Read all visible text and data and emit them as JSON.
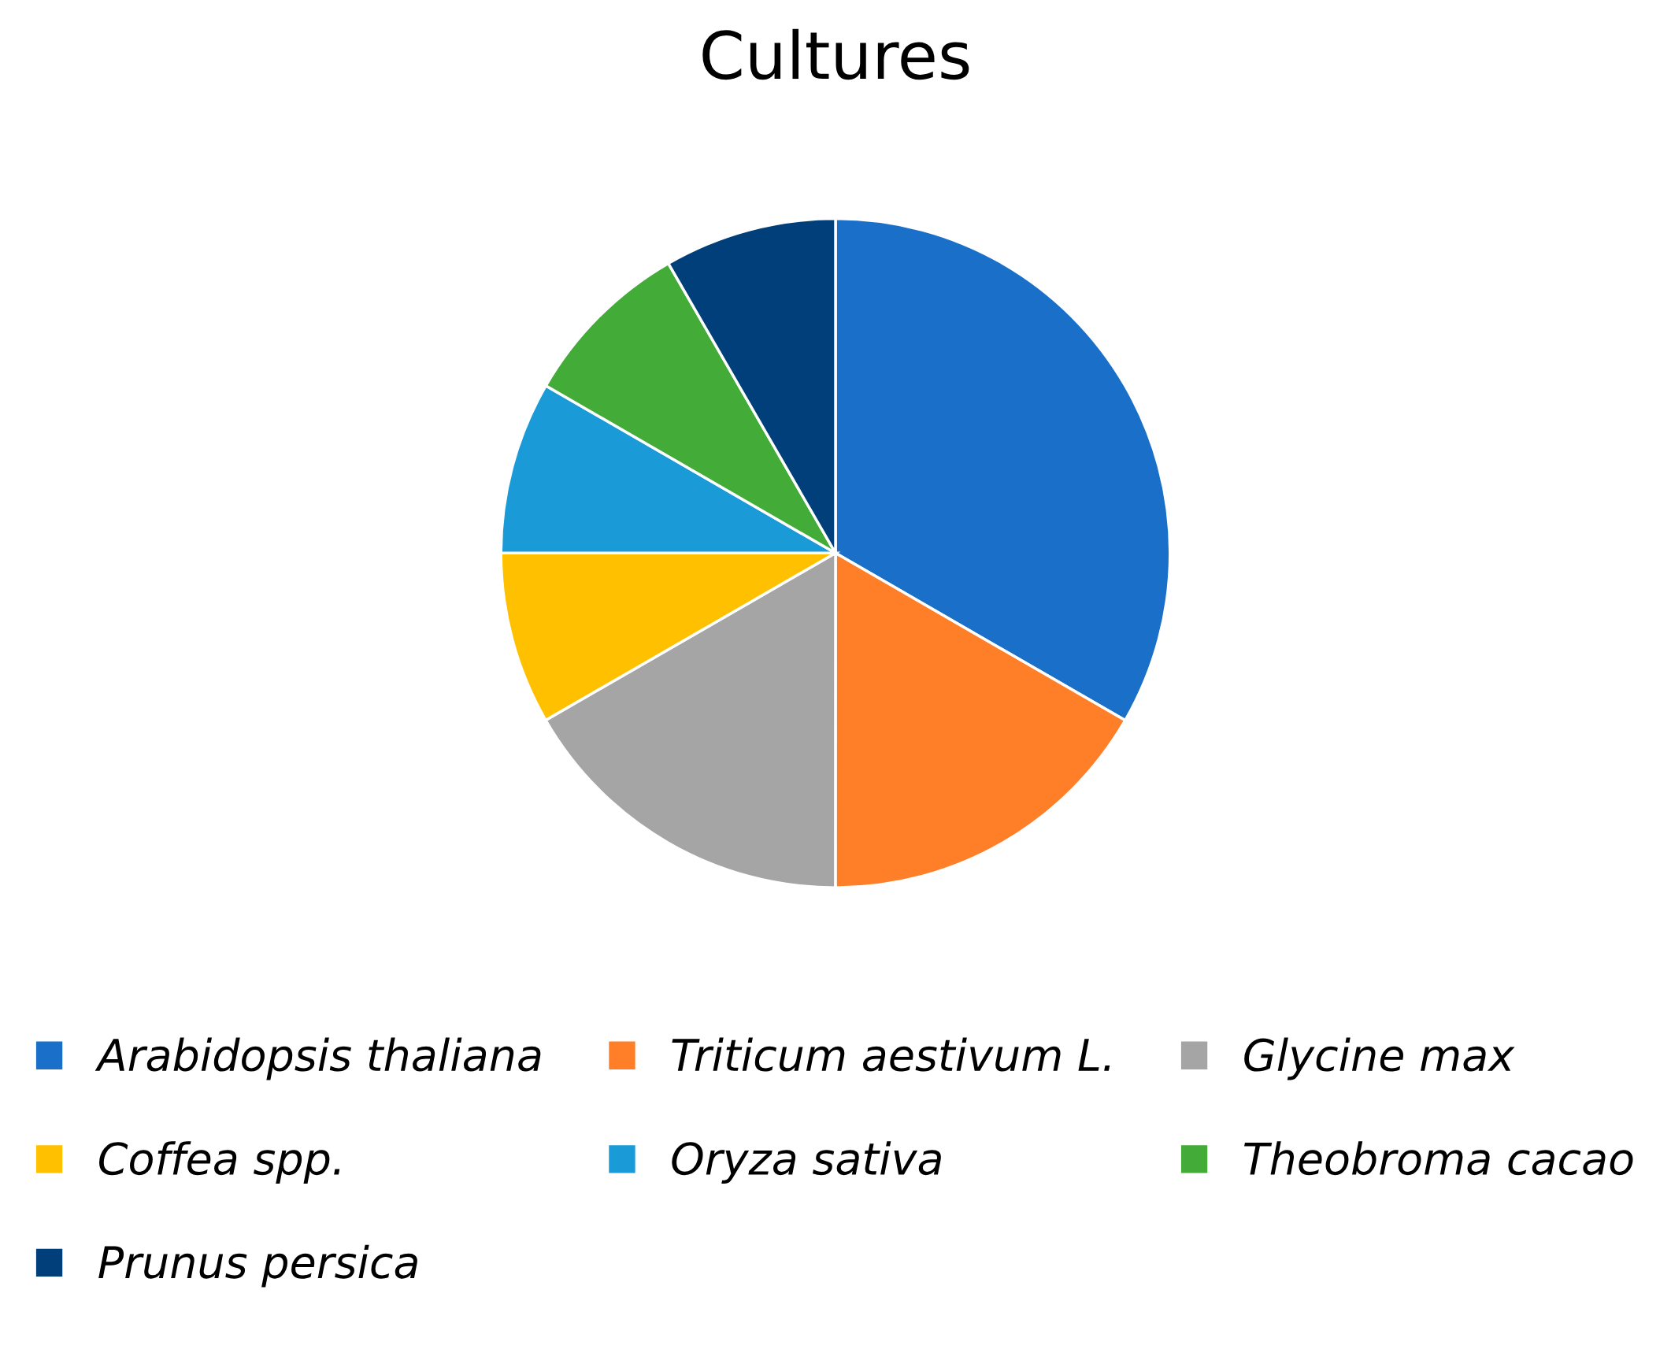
{
  "chart_data": {
    "type": "pie",
    "title": "Cultures",
    "categories": [
      "Arabidopsis thaliana",
      "Triticum aestivum L.",
      "Glycine max",
      "Coffea spp.",
      "Oryza sativa",
      "Theobroma cacao",
      "Prunus persica"
    ],
    "values": [
      33.33,
      16.67,
      16.67,
      8.33,
      8.33,
      8.33,
      8.33
    ],
    "colors": [
      "#1a70c8",
      "#fe7f27",
      "#a5a5a5",
      "#ffc000",
      "#1a9ad6",
      "#43ab37",
      "#003f7a"
    ],
    "legend": "bottom"
  }
}
